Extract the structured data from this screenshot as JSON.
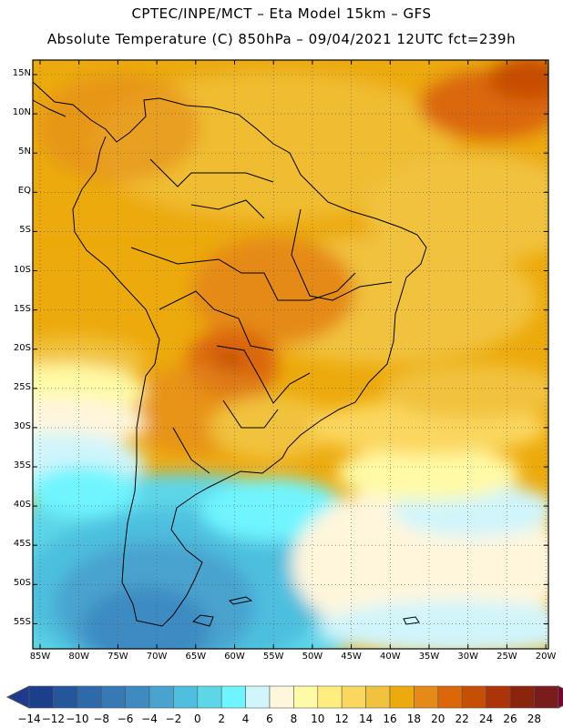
{
  "header": {
    "line1": "CPTEC/INPE/MCT –  Eta Model 15km – GFS",
    "line2": "Absolute Temperature (C) 850hPa – 09/04/2021 12UTC fct=239h"
  },
  "lat_labels": [
    "15N",
    "10N",
    "5N",
    "EQ",
    "5S",
    "10S",
    "15S",
    "20S",
    "25S",
    "30S",
    "35S",
    "40S",
    "45S",
    "50S",
    "55S"
  ],
  "lon_labels": [
    "85W",
    "80W",
    "75W",
    "70W",
    "65W",
    "60W",
    "55W",
    "50W",
    "45W",
    "40W",
    "35W",
    "30W",
    "25W",
    "20W"
  ],
  "colorbar": {
    "labels": [
      "−14",
      "−12",
      "−10",
      "−8",
      "−6",
      "−4",
      "−2",
      "0",
      "2",
      "4",
      "6",
      "8",
      "10",
      "12",
      "14",
      "16",
      "18",
      "20",
      "22",
      "24",
      "26",
      "28"
    ],
    "colors": [
      "#1c3f8c",
      "#24569c",
      "#2e69aa",
      "#3779b4",
      "#3e8bc2",
      "#48a3cf",
      "#4ebfde",
      "#5dd6e8",
      "#6ff5ff",
      "#d0f5fb",
      "#fff6dc",
      "#fffaa6",
      "#ffee7e",
      "#fbd75e",
      "#f1c23d",
      "#ecaa0c",
      "#e58a19",
      "#db6709",
      "#c74e05",
      "#ad3309",
      "#8b240d",
      "#7a1c1c"
    ],
    "below_color": "#1f3a8c",
    "above_color": "#7f0030"
  },
  "map": {
    "grid": "dotted",
    "lat_range": [
      -58,
      17
    ],
    "lon_range": [
      -86,
      -20
    ]
  }
}
